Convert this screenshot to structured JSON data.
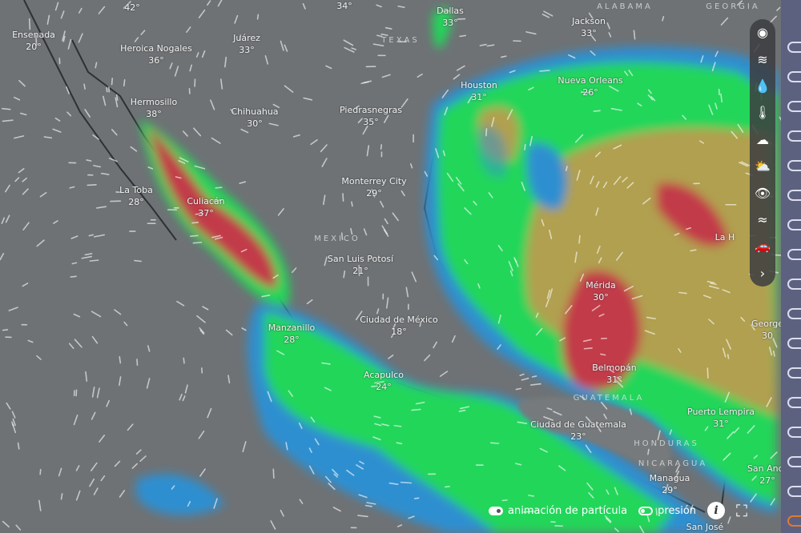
{
  "map": {
    "layer_colors": {
      "ocean_land": "#6e7275",
      "light_rain": "#2f8fd0",
      "moderate": "#22d65a",
      "heavy": "#b0a050",
      "intense": "#c23a4a"
    },
    "cities": [
      {
        "name": "",
        "temp": "42°"
      },
      {
        "name": "",
        "temp": "34°"
      },
      {
        "name": "Ensenada",
        "temp": "20°"
      },
      {
        "name": "Heroica Nogales",
        "temp": "36°"
      },
      {
        "name": "Juárez",
        "temp": "33°"
      },
      {
        "name": "Dallas",
        "temp": "33°"
      },
      {
        "name": "Jackson",
        "temp": "33°"
      },
      {
        "name": "Houston",
        "temp": "31°"
      },
      {
        "name": "Nueva Orleans",
        "temp": "26°"
      },
      {
        "name": "Hermosillo",
        "temp": "38°"
      },
      {
        "name": "Chihuahua",
        "temp": "30°"
      },
      {
        "name": "Piedrasnegras",
        "temp": "35°"
      },
      {
        "name": "Monterrey City",
        "temp": "29°"
      },
      {
        "name": "La Toba",
        "temp": "28°"
      },
      {
        "name": "Culiacán",
        "temp": "37°"
      },
      {
        "name": "San Luis Potosí",
        "temp": "21°"
      },
      {
        "name": "Mérida",
        "temp": "30°"
      },
      {
        "name": "Manzanillo",
        "temp": "28°"
      },
      {
        "name": "Ciudad de México",
        "temp": "18°"
      },
      {
        "name": "Acapulco",
        "temp": "24°"
      },
      {
        "name": "Belmopán",
        "temp": "31°"
      },
      {
        "name": "George",
        "temp": "30"
      },
      {
        "name": "La H",
        "temp": ""
      },
      {
        "name": "Puerto Lempira",
        "temp": "31°"
      },
      {
        "name": "Ciudad de Guatemala",
        "temp": "23°"
      },
      {
        "name": "Managua",
        "temp": "29°"
      },
      {
        "name": "San Andr",
        "temp": "27°"
      },
      {
        "name": "San José",
        "temp": ""
      }
    ],
    "regions": [
      "TEXAS",
      "MEXICO",
      "GUATEMALA",
      "HONDURAS",
      "NICARAGUA",
      "ALABAMA",
      "GEORGIA"
    ]
  },
  "toolbar": {
    "tools": [
      {
        "icon": "globe-icon",
        "glyph": "◉"
      },
      {
        "icon": "wind-icon",
        "glyph": "≋"
      },
      {
        "icon": "rain-drop-icon",
        "glyph": "💧"
      },
      {
        "icon": "thermometer-icon",
        "glyph": "🌡"
      },
      {
        "icon": "cloud-icon",
        "glyph": "☁"
      },
      {
        "icon": "cloud-base-icon",
        "glyph": "⛅"
      },
      {
        "icon": "visibility-eye-icon",
        "glyph": "👁"
      },
      {
        "icon": "waves-icon",
        "glyph": "≈"
      },
      {
        "icon": "car-icon",
        "glyph": "🚗"
      },
      {
        "icon": "chevron-right-icon",
        "glyph": "›"
      }
    ]
  },
  "bottom": {
    "particle_animation_label": "animación de partícula",
    "particle_animation_on": true,
    "pressure_label": "presión",
    "pressure_on": false,
    "info_glyph": "i",
    "fullscreen_glyph": "⛶"
  }
}
